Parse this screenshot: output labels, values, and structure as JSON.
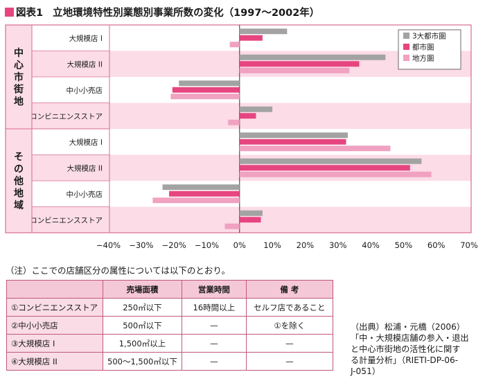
{
  "header": {
    "fig_label": "図表1",
    "title": "立地環境特性別業態別事業所数の変化（1997〜2002年）"
  },
  "chart_data": {
    "type": "bar",
    "orientation": "horizontal",
    "groups": [
      {
        "label": "中心市街地",
        "categories": [
          "大規模店 I",
          "大規模店 II",
          "中小小売店",
          "コンビニエンスストア"
        ]
      },
      {
        "label": "その他地域",
        "categories": [
          "大規模店 I",
          "大規模店 II",
          "中小小売店",
          "コンビニエンスストア"
        ]
      }
    ],
    "series": [
      {
        "name": "3大都市圏",
        "color": "#a3a3a3",
        "values": [
          14.5,
          44.5,
          -18.5,
          10,
          33,
          55.5,
          -23.5,
          7
        ]
      },
      {
        "name": "都市圏",
        "color": "#e6457f",
        "values": [
          7,
          36.5,
          -20.5,
          5,
          32.5,
          52,
          -21.5,
          6.5
        ]
      },
      {
        "name": "地方圏",
        "color": "#f0a2c0",
        "values": [
          -3,
          33.5,
          -21,
          -3.5,
          46,
          58.5,
          -26.5,
          -4.5
        ]
      }
    ],
    "xlim": [
      -40,
      70
    ],
    "xticks": [
      "−40%",
      "−30%",
      "−20%",
      "−10%",
      "0%",
      "10%",
      "20%",
      "30%",
      "40%",
      "50%",
      "60%",
      "70%"
    ],
    "legend_position": "top-right",
    "band_colors": {
      "even": "#ffffff",
      "odd": "#fbdce7",
      "border": "#d96a93"
    }
  },
  "note": "（注）ここでの店舗区分の属性については以下のとおり。",
  "criteria_table": {
    "headers": [
      "",
      "売場面積",
      "営業時間",
      "備 考"
    ],
    "rows": [
      [
        "①コンビニエンスストア",
        "250㎡以下",
        "16時間以上",
        "セルフ店であること"
      ],
      [
        "②中小小売店",
        "500㎡以下",
        "—",
        "①を除く"
      ],
      [
        "③大規模店 I",
        "1,500㎡以上",
        "—",
        "—"
      ],
      [
        "④大規模店 II",
        "500〜1,500㎡以下",
        "—",
        "—"
      ]
    ]
  },
  "source": {
    "heading": "（出典）松浦・元橋（2006）",
    "lines": [
      "「中・大規模店舗の参入・退出",
      "と中心市街地の活性化に関す",
      "る計量分析」（RIETI-DP-06-",
      "J-051）"
    ]
  }
}
